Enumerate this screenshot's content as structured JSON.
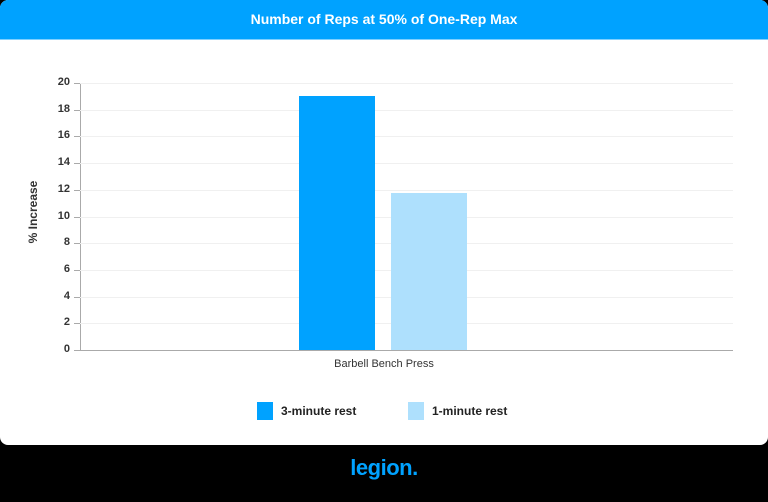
{
  "title": "Number of Reps at 50% of One-Rep Max",
  "yaxis_title": "% Increase",
  "y_ticks": [
    "0",
    "2",
    "4",
    "6",
    "8",
    "10",
    "12",
    "14",
    "16",
    "18",
    "20"
  ],
  "x_category": "Barbell Bench Press",
  "legend": [
    {
      "label": "3-minute rest",
      "color": "#00a2ff"
    },
    {
      "label": "1-minute rest",
      "color": "#aee0fd"
    }
  ],
  "brand": "legion.",
  "chart_data": {
    "type": "bar",
    "title": "Number of Reps at 50% of One-Rep Max",
    "xlabel": "",
    "ylabel": "% Increase",
    "categories": [
      "Barbell Bench Press"
    ],
    "series": [
      {
        "name": "3-minute rest",
        "values": [
          19
        ],
        "color": "#00a2ff"
      },
      {
        "name": "1-minute rest",
        "values": [
          11.75
        ],
        "color": "#aee0fd"
      }
    ],
    "ylim": [
      0,
      20
    ],
    "ytick_step": 2,
    "grid": true,
    "legend_position": "bottom"
  }
}
